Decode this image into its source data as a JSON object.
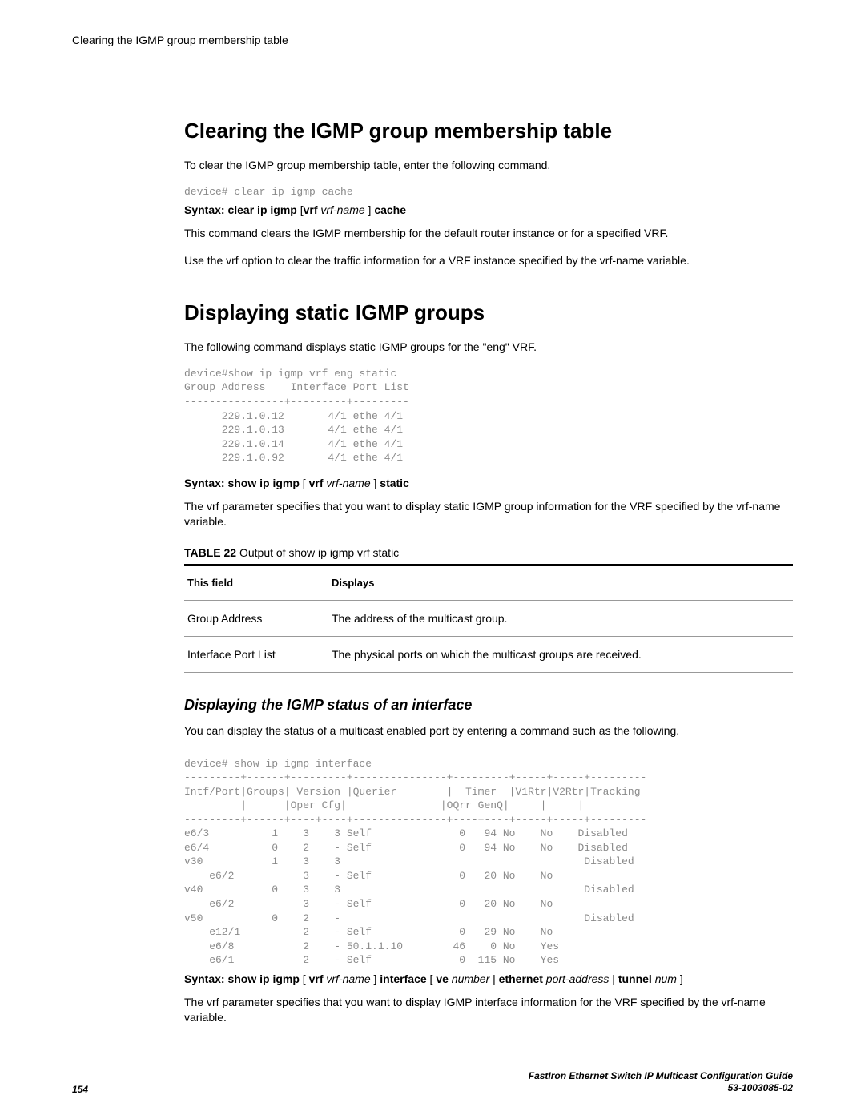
{
  "header": {
    "text": "Clearing the IGMP group membership table"
  },
  "section1": {
    "title": "Clearing the IGMP group membership table",
    "intro": "To clear the IGMP group membership table, enter the following command.",
    "code": "device# clear ip igmp cache",
    "syntax_prefix": "Syntax: clear ip igmp ",
    "syntax_bracket_open": "[",
    "syntax_vrf": "vrf ",
    "syntax_vrfname": "vrf-name ",
    "syntax_bracket_close": "] ",
    "syntax_cache": "cache",
    "desc1": "This command clears the IGMP membership for the default router instance or for a specified VRF.",
    "desc2_pre": "Use the ",
    "desc2_vrf": "vrf",
    "desc2_mid": " option to clear the traffic information for a VRF instance specified by the ",
    "desc2_vrfname": "vrf-name",
    "desc2_post": " variable."
  },
  "section2": {
    "title": "Displaying static IGMP groups",
    "intro": "The following command displays static IGMP groups for the \"eng\" VRF.",
    "code": "device#show ip igmp vrf eng static\nGroup Address    Interface Port List\n----------------+---------+---------\n      229.1.0.12       4/1 ethe 4/1\n      229.1.0.13       4/1 ethe 4/1\n      229.1.0.14       4/1 ethe 4/1\n      229.1.0.92       4/1 ethe 4/1",
    "syntax_prefix": "Syntax: show ip igmp ",
    "syntax_bracket_open": "[ ",
    "syntax_vrf": "vrf ",
    "syntax_vrfname": "vrf-name ",
    "syntax_bracket_close": "] ",
    "syntax_static": "static",
    "desc_pre": "The ",
    "desc_vrf": "vrf",
    "desc_mid": " parameter specifies that you want to display static IGMP group information for the VRF specified by the ",
    "desc_vrfname": "vrf-name",
    "desc_post": " variable.",
    "table_caption_bold": "TABLE 22",
    "table_caption_text": "   Output of show ip igmp vrf static",
    "col1": "This field",
    "col2": "Displays",
    "row1_field": "Group Address",
    "row1_desc": "The address of the multicast group.",
    "row2_field": "Interface Port List",
    "row2_desc": "The physical ports on which the multicast groups are received."
  },
  "section3": {
    "title": "Displaying the IGMP status of an interface",
    "intro": "You can display the status of a multicast enabled port by entering a command such as the following.",
    "code": "device# show ip igmp interface\n---------+------+---------+---------------+---------+-----+-----+---------\nIntf/Port|Groups| Version |Querier        |  Timer  |V1Rtr|V2Rtr|Tracking\n         |      |Oper Cfg|               |OQrr GenQ|     |     |\n---------+------+----+----+---------------+----+----+-----+-----+---------\ne6/3          1    3    3 Self              0   94 No    No    Disabled\ne6/4          0    2    - Self              0   94 No    No    Disabled\nv30           1    3    3                                       Disabled\n    e6/2           3    - Self              0   20 No    No\nv40           0    3    3                                       Disabled\n    e6/2           3    - Self              0   20 No    No\nv50           0    2    -                                       Disabled\n    e12/1          2    - Self              0   29 No    No\n    e6/8           2    - 50.1.1.10        46    0 No    Yes\n    e6/1           2    - Self              0  115 No    Yes",
    "syntax_prefix": "Syntax: show ip igmp ",
    "syntax_b1": "[ ",
    "syntax_vrf": "vrf ",
    "syntax_vrfname": "vrf-name ",
    "syntax_b2": "] ",
    "syntax_interface": "interface ",
    "syntax_b3": "[ ",
    "syntax_ve": "ve ",
    "syntax_number": "number ",
    "syntax_pipe1": "| ",
    "syntax_ethernet": "ethernet ",
    "syntax_port": "port-address ",
    "syntax_pipe2": "| ",
    "syntax_tunnel": "tunnel ",
    "syntax_num": "num ",
    "syntax_b4": "]",
    "desc_pre": "The ",
    "desc_vrf": "vrf",
    "desc_mid": " parameter specifies that you want to display IGMP interface information for the VRF specified by the ",
    "desc_vrfname": "vrf-name",
    "desc_post": " variable."
  },
  "footer": {
    "page": "154",
    "right1": "FastIron Ethernet Switch IP Multicast Configuration Guide",
    "right2": "53-1003085-02"
  }
}
